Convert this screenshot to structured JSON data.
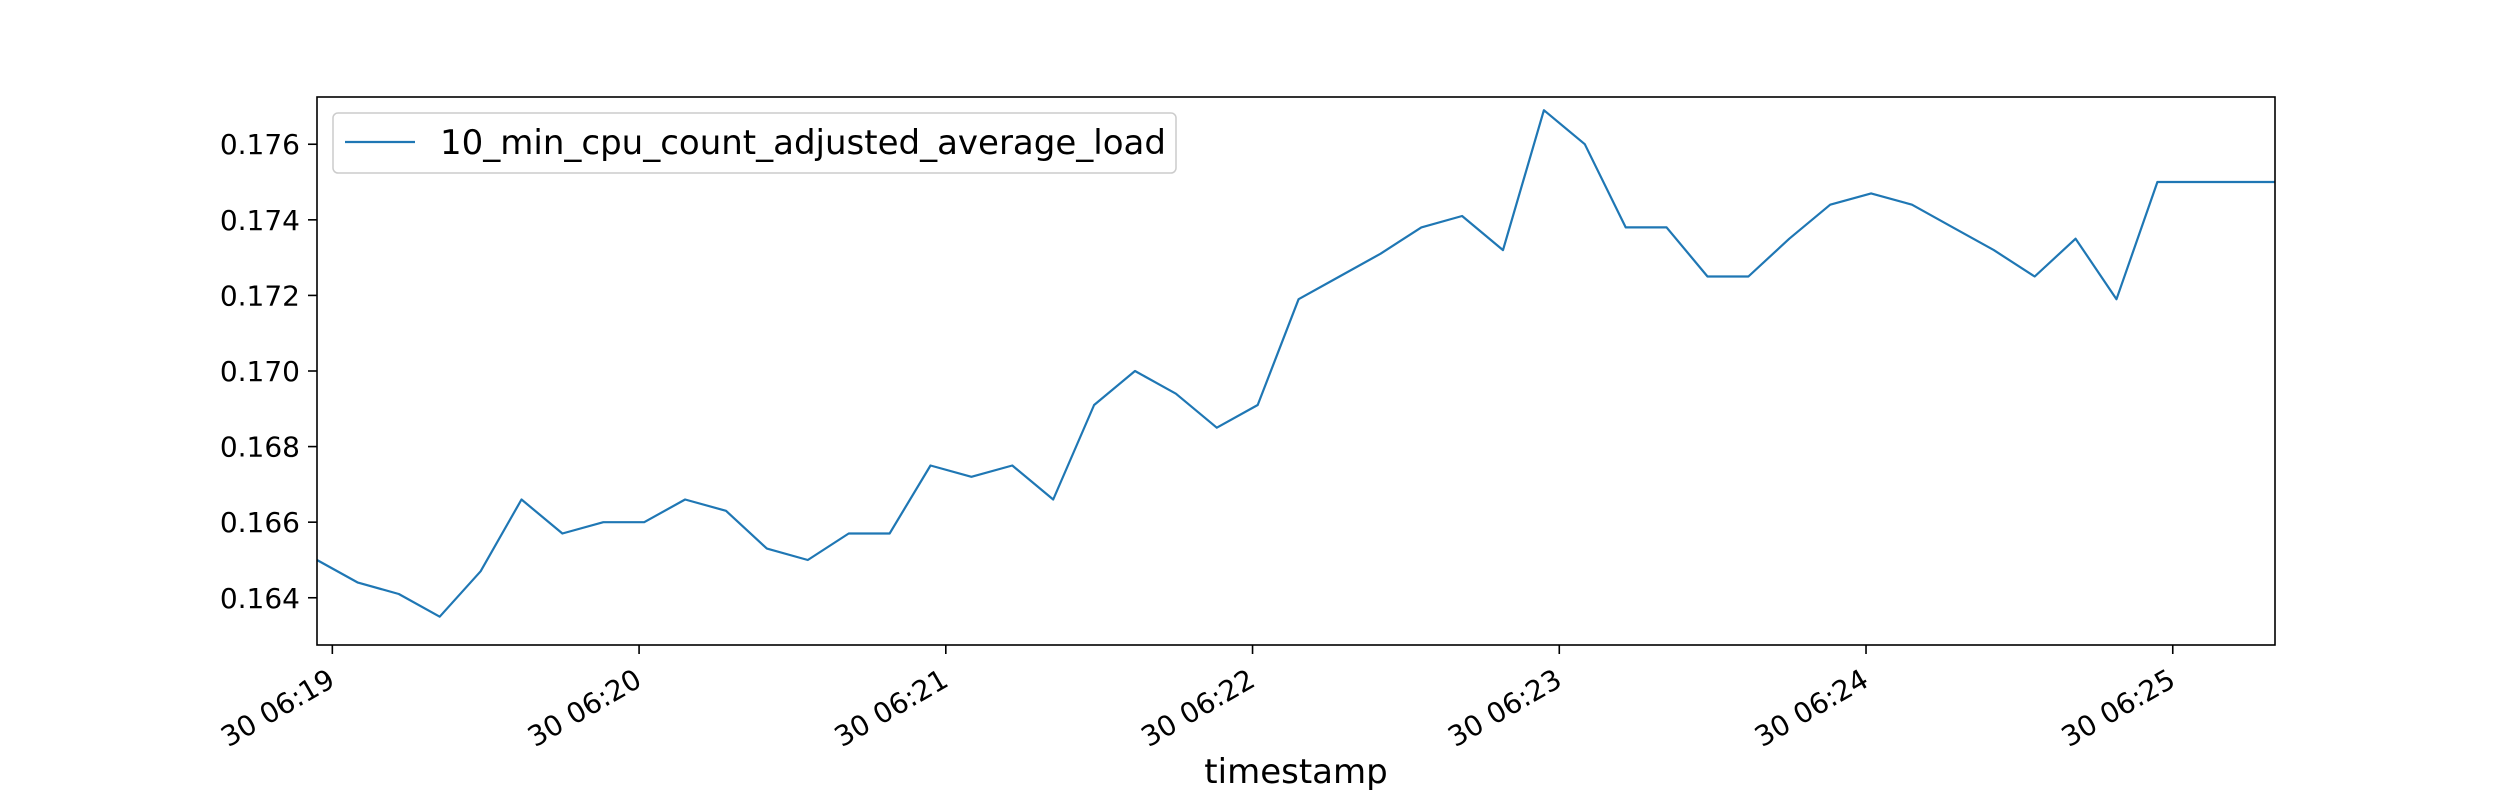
{
  "chart_data": {
    "type": "line",
    "xlabel": "timestamp",
    "ylabel": "",
    "title": "",
    "legend_position": "top-left",
    "grid": false,
    "x_ticks": [
      "30 06:19",
      "30 06:20",
      "30 06:21",
      "30 06:22",
      "30 06:23",
      "30 06:24",
      "30 06:25"
    ],
    "y_ticks": [
      "0.164",
      "0.166",
      "0.168",
      "0.170",
      "0.172",
      "0.174",
      "0.176"
    ],
    "xlim": [
      "06:18:57",
      "06:25:20"
    ],
    "ylim": [
      0.16275,
      0.17725
    ],
    "series": [
      {
        "name": "10_min_cpu_count_adjusted_average_load",
        "color": "#1f77b4",
        "x": [
          "06:18:57",
          "06:19:05",
          "06:19:13",
          "06:19:21",
          "06:19:29",
          "06:19:37",
          "06:19:45",
          "06:19:53",
          "06:20:01",
          "06:20:09",
          "06:20:17",
          "06:20:25",
          "06:20:33",
          "06:20:41",
          "06:20:49",
          "06:20:57",
          "06:21:05",
          "06:21:13",
          "06:21:21",
          "06:21:29",
          "06:21:37",
          "06:21:45",
          "06:21:53",
          "06:22:01",
          "06:22:09",
          "06:22:17",
          "06:22:25",
          "06:22:33",
          "06:22:41",
          "06:22:49",
          "06:22:57",
          "06:23:05",
          "06:23:13",
          "06:23:21",
          "06:23:29",
          "06:23:37",
          "06:23:45",
          "06:23:53",
          "06:24:01",
          "06:24:09",
          "06:24:17",
          "06:24:25",
          "06:24:33",
          "06:24:41",
          "06:24:49",
          "06:24:57",
          "06:25:05",
          "06:25:20"
        ],
        "y": [
          0.165,
          0.1644,
          0.1641,
          0.1635,
          0.1647,
          0.1666,
          0.1657,
          0.166,
          0.166,
          0.1666,
          0.1663,
          0.1653,
          0.165,
          0.1657,
          0.1657,
          0.1675,
          0.1672,
          0.1675,
          0.1666,
          0.1691,
          0.17,
          0.1694,
          0.1685,
          0.1691,
          0.1719,
          0.1725,
          0.1731,
          0.1738,
          0.1741,
          0.1732,
          0.1769,
          0.176,
          0.1738,
          0.1738,
          0.1725,
          0.1725,
          0.1735,
          0.1744,
          0.1747,
          0.1744,
          0.1738,
          0.1732,
          0.1725,
          0.1735,
          0.1719,
          0.175,
          0.175,
          0.175
        ]
      }
    ]
  }
}
